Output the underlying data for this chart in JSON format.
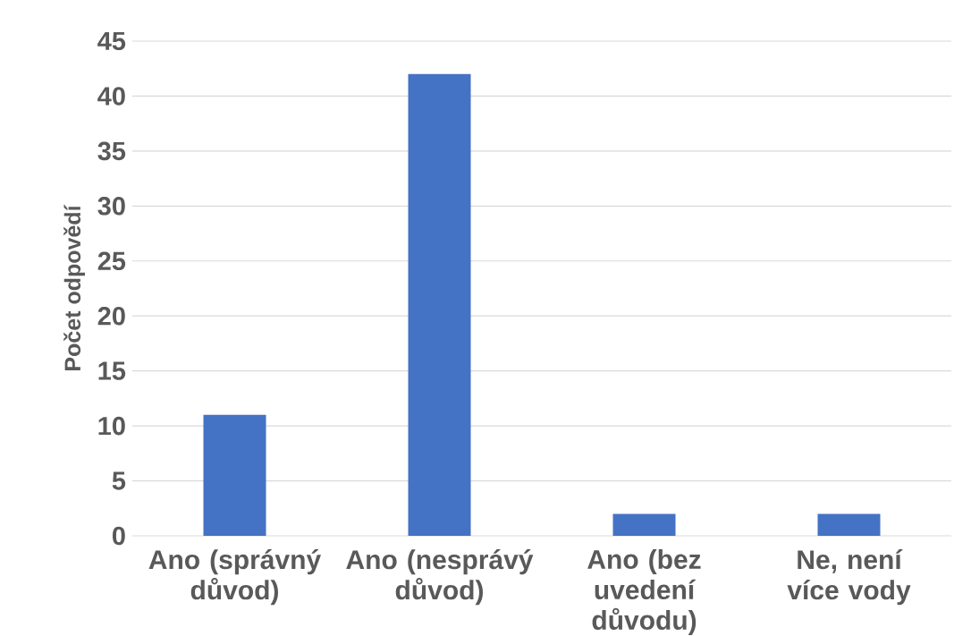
{
  "chart_data": {
    "type": "bar",
    "categories": [
      "Ano (správný důvod)",
      "Ano (nesprávý důvod)",
      "Ano (bez uvedení důvodu)",
      "Ne, není více vody"
    ],
    "values": [
      11,
      42,
      2,
      2
    ],
    "color": "#4472c4",
    "ylabel": "Počet odpovědí",
    "ylim": [
      0,
      45
    ],
    "yticks": [
      0,
      5,
      10,
      15,
      20,
      25,
      30,
      35,
      40,
      45
    ],
    "grid": "y"
  }
}
